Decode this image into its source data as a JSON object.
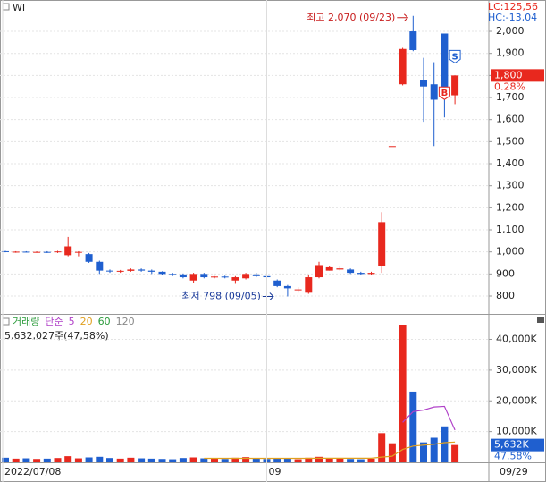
{
  "chart_data": [
    {
      "type": "candlestick",
      "symbol_label": "WI",
      "info_lines": [
        "LC:125,56",
        "HC:-13,04"
      ],
      "categories": [
        "2022/07/08",
        null,
        null,
        null,
        null,
        null,
        null,
        null,
        null,
        null,
        null,
        null,
        null,
        null,
        null,
        null,
        null,
        null,
        null,
        null,
        null,
        null,
        null,
        null,
        null,
        "09",
        null,
        null,
        null,
        null,
        null,
        null,
        null,
        null,
        null,
        null,
        null,
        null,
        null,
        null,
        null,
        null,
        null,
        "09/29"
      ],
      "open": [
        1003,
        1000,
        1001,
        999,
        1000,
        998,
        985,
        1000,
        990,
        955,
        915,
        912,
        914,
        920,
        915,
        910,
        900,
        898,
        870,
        900,
        885,
        888,
        870,
        880,
        898,
        890,
        870,
        845,
        830,
        815,
        885,
        915,
        920,
        920,
        905,
        900,
        935,
        1480,
        1760,
        2000,
        1780,
        1760,
        1990,
        1710
      ],
      "high": [
        1005,
        1003,
        1003,
        1002,
        1003,
        1005,
        1068,
        1003,
        995,
        960,
        920,
        918,
        925,
        925,
        920,
        912,
        905,
        902,
        905,
        905,
        890,
        892,
        890,
        905,
        905,
        900,
        875,
        850,
        840,
        895,
        955,
        935,
        935,
        925,
        910,
        910,
        1180,
        1480,
        1925,
        2070,
        1880,
        1860,
        1990,
        1800
      ],
      "low": [
        998,
        996,
        997,
        996,
        995,
        995,
        980,
        980,
        950,
        900,
        905,
        905,
        910,
        910,
        900,
        895,
        890,
        880,
        860,
        880,
        880,
        880,
        855,
        875,
        885,
        880,
        840,
        798,
        815,
        810,
        880,
        915,
        915,
        900,
        895,
        895,
        905,
        1480,
        1755,
        1910,
        1590,
        1480,
        1610,
        1670
      ],
      "close": [
        1000,
        1001,
        999,
        1000,
        998,
        1002,
        1025,
        1000,
        955,
        915,
        912,
        914,
        920,
        915,
        910,
        900,
        898,
        885,
        900,
        885,
        888,
        884,
        885,
        900,
        890,
        885,
        845,
        835,
        830,
        885,
        940,
        930,
        925,
        905,
        900,
        905,
        1135,
        1480,
        1920,
        1915,
        1750,
        1690,
        1700,
        1800
      ],
      "up_color": "#e8281e",
      "down_color": "#1f5fcf",
      "ylim": [
        723,
        2142
      ],
      "yticks": [
        800,
        900,
        {
          "value": 1000,
          "label": "1,000"
        },
        {
          "value": 1100,
          "label": "1,100"
        },
        {
          "value": 1200,
          "label": "1,200"
        },
        {
          "value": 1300,
          "label": "1,300"
        },
        {
          "value": 1400,
          "label": "1,400"
        },
        {
          "value": 1500,
          "label": "1,500"
        },
        {
          "value": 1600,
          "label": "1,600"
        },
        {
          "value": 1700,
          "label": "1,700"
        },
        {
          "value": 1800,
          "label": "1,800"
        },
        {
          "value": 1900,
          "label": "1,900"
        },
        {
          "value": 2000,
          "label": "2,000"
        }
      ],
      "high_annotation": "최고 2,070 (09/23)",
      "low_annotation": "최저 798 (09/05)",
      "last_price": {
        "value": 1800,
        "label": "1,800"
      },
      "change_label": "0.28%",
      "buy_signal": "B",
      "sell_signal": "S",
      "grid": true
    },
    {
      "type": "bar",
      "title": "거래량",
      "ma_label": "단순",
      "summary": "5,632,027주(47,58%)",
      "values": [
        1500,
        1200,
        1300,
        1100,
        1200,
        1400,
        2000,
        1300,
        1600,
        1800,
        1400,
        1200,
        1500,
        1300,
        1200,
        1100,
        1000,
        1400,
        1600,
        1300,
        1200,
        1100,
        1500,
        1700,
        1200,
        1100,
        1400,
        1300,
        1000,
        1500,
        1800,
        1300,
        1200,
        1100,
        1000,
        1200,
        9500,
        6200,
        44800,
        23000,
        6500,
        8000,
        11700,
        5632
      ],
      "series": [
        {
          "name": "5",
          "color": "#b040c8",
          "values": [
            null,
            null,
            null,
            null,
            null,
            null,
            null,
            null,
            null,
            null,
            null,
            null,
            null,
            null,
            null,
            null,
            null,
            null,
            null,
            null,
            null,
            null,
            null,
            null,
            null,
            null,
            null,
            null,
            null,
            null,
            null,
            null,
            null,
            null,
            null,
            null,
            null,
            null,
            13000,
            16500,
            17000,
            18000,
            18200,
            10500
          ]
        },
        {
          "name": "20",
          "color": "#e0a020",
          "values": [
            null,
            null,
            null,
            null,
            null,
            null,
            null,
            null,
            null,
            null,
            null,
            null,
            null,
            null,
            null,
            null,
            null,
            null,
            null,
            1300,
            1300,
            1300,
            1300,
            1300,
            1300,
            1300,
            1300,
            1300,
            1300,
            1300,
            1350,
            1350,
            1350,
            1350,
            1350,
            1350,
            1700,
            2000,
            4200,
            5300,
            5600,
            5900,
            6400,
            6600
          ]
        }
      ],
      "extra_legend": [
        {
          "name": "60",
          "color": "#2a9a3a"
        },
        {
          "name": "120",
          "color": "#888888"
        }
      ],
      "last_volume": {
        "value": 5632,
        "label": "5,632K"
      },
      "ratio_label": "47.58%",
      "ylim": [
        0,
        48000
      ],
      "yticks": [
        {
          "value": 10000,
          "label": "10,000K"
        },
        {
          "value": 20000,
          "label": "20,000K"
        },
        {
          "value": 30000,
          "label": "30,000K"
        },
        {
          "value": 40000,
          "label": "40,000K"
        }
      ],
      "grid": true
    }
  ]
}
